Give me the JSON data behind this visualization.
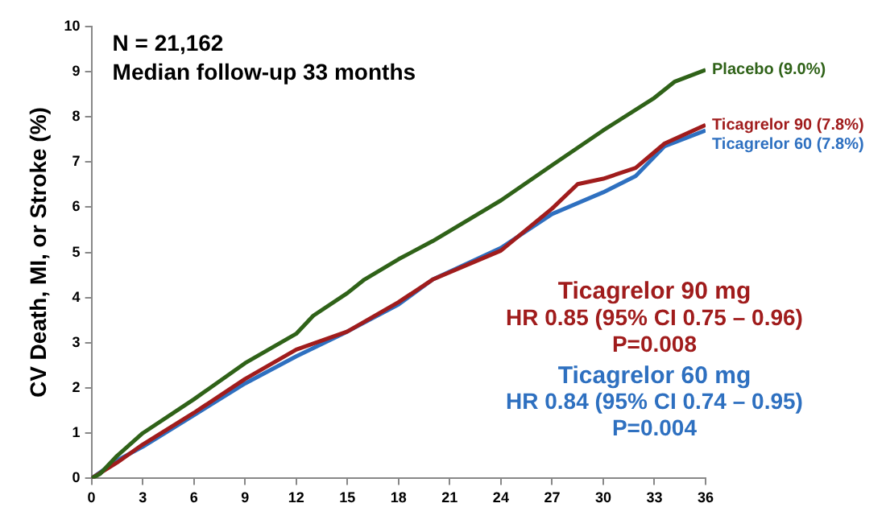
{
  "chart_data": {
    "type": "line",
    "ylabel": "CV Death, MI, or Stroke (%)",
    "xlim": [
      0,
      36
    ],
    "xticks": [
      0,
      3,
      6,
      9,
      12,
      15,
      18,
      21,
      24,
      27,
      30,
      33,
      36
    ],
    "ylim": [
      0,
      10
    ],
    "yticks": [
      0,
      1,
      2,
      3,
      4,
      5,
      6,
      7,
      8,
      9,
      10
    ],
    "grid": false,
    "legend": false,
    "marker": "none",
    "line_style": "solid",
    "annotations": [
      "N = 21,162",
      "Median follow-up 33 months",
      "Ticagrelor 90 mg",
      "HR 0.85 (95% CI 0.75 – 0.96)",
      "P=0.008",
      "Ticagrelor 60 mg",
      "HR 0.84 (95% CI 0.74 – 0.95)",
      "P=0.004"
    ],
    "series": [
      {
        "name": "Placebo (9.0%)",
        "color": "#2f6218",
        "x": [
          0,
          0.5,
          1.5,
          3,
          6,
          9,
          12,
          13,
          15,
          16,
          18,
          20,
          24,
          27,
          30,
          33,
          34.2,
          36
        ],
        "values": [
          0,
          0.1,
          0.5,
          1.0,
          1.75,
          2.55,
          3.2,
          3.6,
          4.1,
          4.4,
          4.85,
          5.25,
          6.15,
          6.93,
          7.7,
          8.42,
          8.78,
          9.04
        ]
      },
      {
        "name": "Ticagrelor 90 (7.8%)",
        "color": "#a01c1c",
        "x": [
          0,
          1.5,
          3,
          6,
          9,
          12,
          15,
          18,
          20,
          24,
          27,
          28.5,
          30,
          31.9,
          33.6,
          36
        ],
        "values": [
          0,
          0.35,
          0.75,
          1.45,
          2.2,
          2.85,
          3.25,
          3.9,
          4.4,
          5.04,
          5.97,
          6.51,
          6.63,
          6.87,
          7.41,
          7.82
        ]
      },
      {
        "name": "Ticagrelor 60 (7.8%)",
        "color": "#2e70c0",
        "x": [
          0,
          1.5,
          3,
          6,
          9,
          12,
          15,
          18,
          20,
          24,
          27,
          30,
          31.9,
          33.6,
          36
        ],
        "values": [
          0,
          0.4,
          0.7,
          1.4,
          2.1,
          2.7,
          3.25,
          3.85,
          4.4,
          5.1,
          5.85,
          6.33,
          6.69,
          7.35,
          7.7
        ]
      }
    ]
  }
}
